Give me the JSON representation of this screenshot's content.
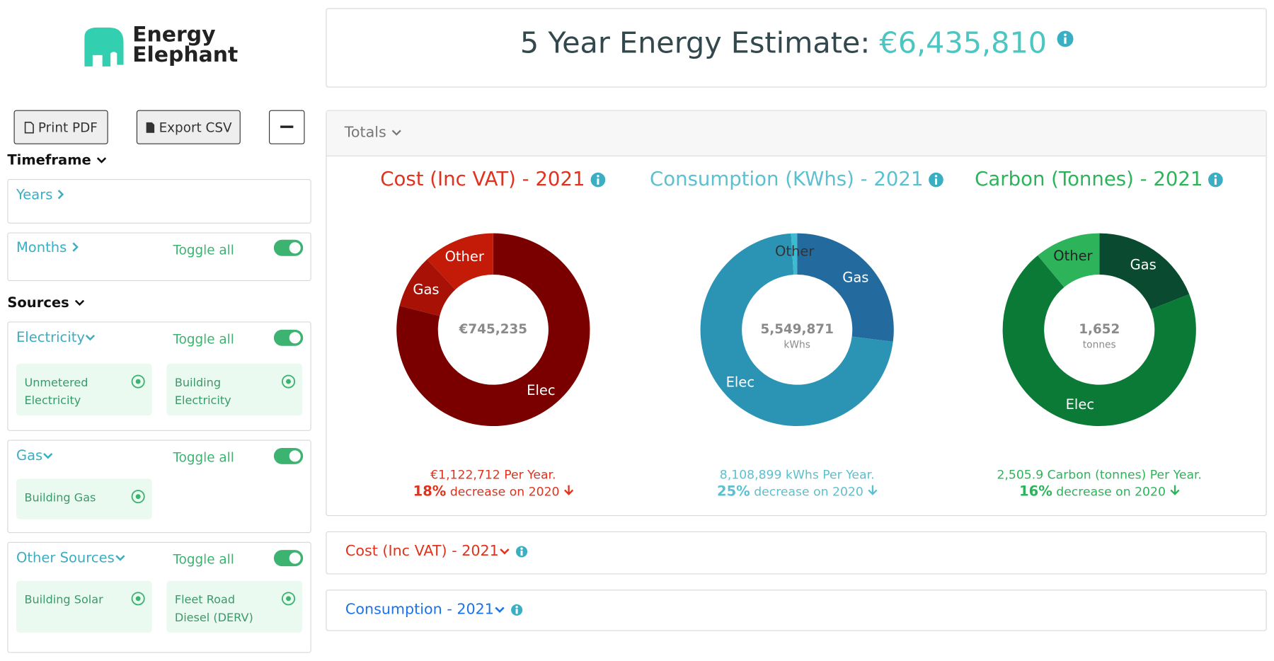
{
  "logo": {
    "line1": "Energy",
    "line2": "Elephant"
  },
  "buttons": [
    "Print PDF",
    "Export CSV"
  ],
  "header": {
    "title": "5 Year Energy Estimate:",
    "amount": "€6,435,810"
  },
  "timeframe": {
    "title": "Timeframe",
    "years": "Years",
    "months": "Months",
    "toggle": "Toggle all"
  },
  "sources": {
    "title": "Sources",
    "groups": [
      {
        "name": "Electricity",
        "toggle": "Toggle all",
        "items": [
          "Unmetered Electricity",
          "Building Electricity"
        ]
      },
      {
        "name": "Gas",
        "toggle": "Toggle all",
        "items": [
          "Building Gas"
        ]
      },
      {
        "name": "Other Sources",
        "toggle": "Toggle all",
        "items": [
          "Building Solar",
          "Fleet Road Diesel (DERV)"
        ]
      }
    ]
  },
  "totals": {
    "title": "Totals"
  },
  "chart_data": [
    {
      "type": "donut",
      "title": "Cost (Inc VAT) - 2021",
      "color": "#e0321c",
      "categories": [
        "Elec",
        "Gas",
        "Other"
      ],
      "values": [
        79,
        9,
        12
      ],
      "colors": [
        "#7a0000",
        "#a81206",
        "#c41a08"
      ],
      "label_colors": [
        "#ffffff",
        "#ffffff",
        "#ffffff"
      ],
      "center": "€745,235",
      "per_year": "€1,122,712 Per Year.",
      "change": "18%",
      "change_text": "decrease on 2020"
    },
    {
      "type": "donut",
      "title": "Consumption (KWhs) - 2021",
      "color": "#5bc0d0",
      "categories": [
        "Gas",
        "Elec",
        "Other"
      ],
      "values": [
        27,
        72,
        1
      ],
      "colors": [
        "#236b9e",
        "#2b94b5",
        "#3bbcd0"
      ],
      "label_colors": [
        "#ffffff",
        "#ffffff",
        "#333333"
      ],
      "center": "5,549,871",
      "center_unit": "kWhs",
      "per_year": "8,108,899 kWhs Per Year.",
      "change": "25%",
      "change_text": "decrease on 2020"
    },
    {
      "type": "donut",
      "title": "Carbon (Tonnes) - 2021",
      "color": "#2db45b",
      "categories": [
        "Gas",
        "Elec",
        "Other"
      ],
      "values": [
        19,
        70,
        11
      ],
      "colors": [
        "#0a4a30",
        "#0c7a37",
        "#2db45b"
      ],
      "label_colors": [
        "#ffffff",
        "#ffffff",
        "#222222"
      ],
      "center": "1,652",
      "center_unit": "tonnes",
      "per_year": "2,505.9 Carbon (tonnes) Per Year.",
      "change": "16%",
      "change_text": "decrease on 2020"
    }
  ],
  "sections": [
    {
      "title": "Cost (Inc VAT) - 2021",
      "color": "#e0321c"
    },
    {
      "title": "Consumption - 2021",
      "color": "#1a73e8"
    }
  ]
}
